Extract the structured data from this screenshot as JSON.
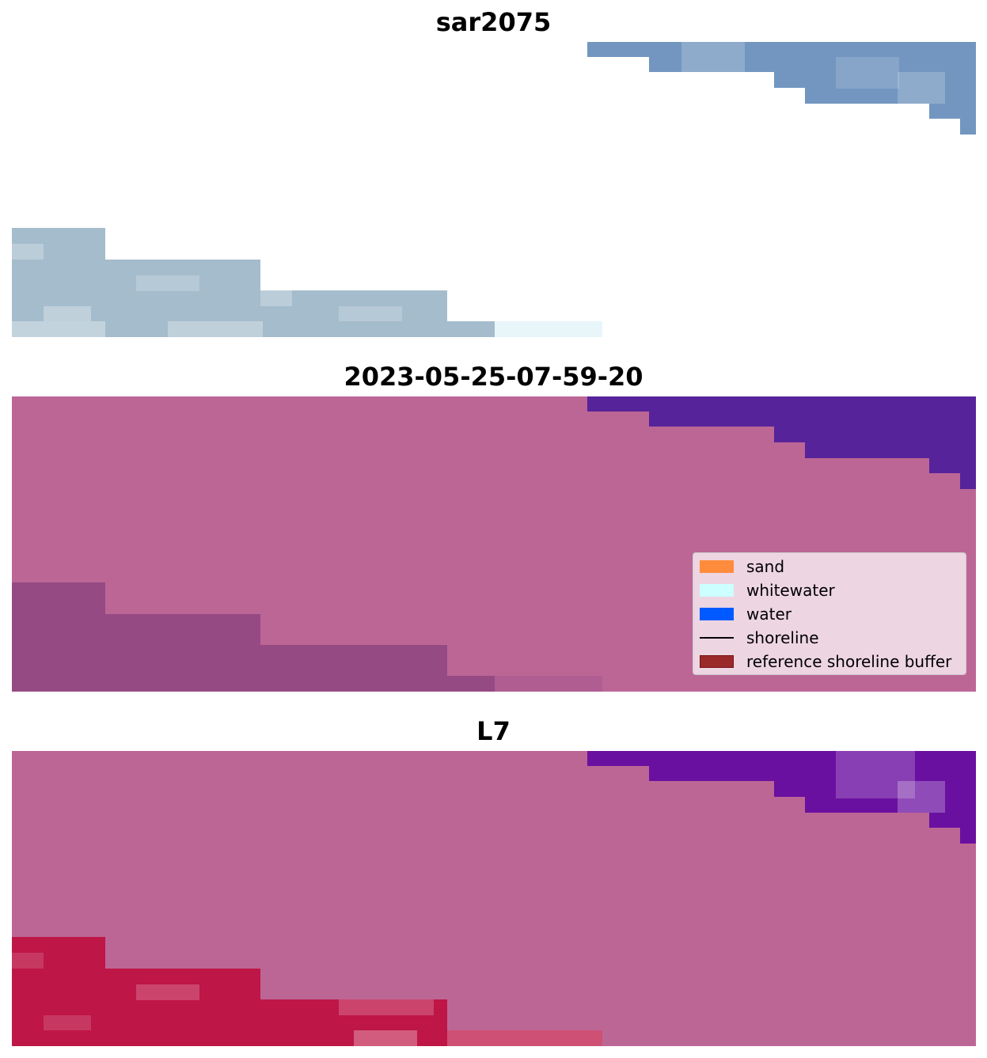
{
  "panels": [
    {
      "title": "sar2075"
    },
    {
      "title": "2023-05-25-07-59-20"
    },
    {
      "title": "L7"
    }
  ],
  "legend": {
    "items": [
      {
        "label": "sand",
        "kind": "patch",
        "color": "#ff8c3c"
      },
      {
        "label": "whitewater",
        "kind": "patch",
        "color": "#ccffff"
      },
      {
        "label": "water",
        "kind": "patch",
        "color": "#005aff"
      },
      {
        "label": "shoreline",
        "kind": "line",
        "color": "#000000"
      },
      {
        "label": "reference shoreline buffer",
        "kind": "patch",
        "color": "#9a2a2a"
      }
    ]
  },
  "colors": {
    "background_overlay": "#bc6696",
    "top_region_sar": "#7296c0",
    "top_region_classified": "#57239a",
    "top_region_l7": "#6a10a0",
    "bottom_region_sar": "#a4bccc",
    "bottom_region_classified": "#964a84",
    "bottom_region_l7": "#be1646"
  }
}
